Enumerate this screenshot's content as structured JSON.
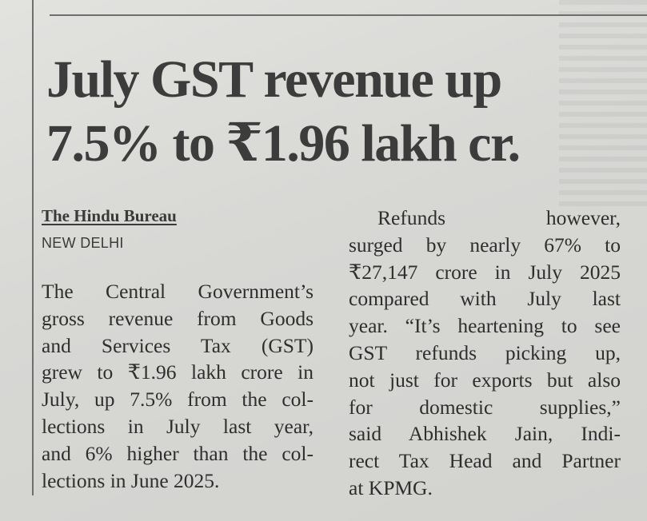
{
  "headline": {
    "line1": "July GST revenue up",
    "line2": "7.5% to ₹1.96 lakh cr."
  },
  "byline": "The Hindu Bureau",
  "dateline": "NEW DELHI",
  "left_column": [
    "The Central Government’s",
    "gross revenue from Goods",
    "and Services Tax (GST)",
    "grew to ₹1.96 lakh crore in",
    "July, up 7.5% from the col-",
    "lections in July last year,",
    "and 6% higher than the col-",
    "lections in June 2025."
  ],
  "right_column": [
    "Refunds however,",
    "surged by nearly 67% to",
    "₹27,147 crore in July 2025",
    "compared with July last",
    "year. “It’s heartening to see",
    "GST refunds picking up,",
    "not just for exports but also",
    "for domestic supplies,”",
    "said Abhishek Jain, Indi-",
    "rect Tax Head and Partner",
    "at KPMG."
  ]
}
